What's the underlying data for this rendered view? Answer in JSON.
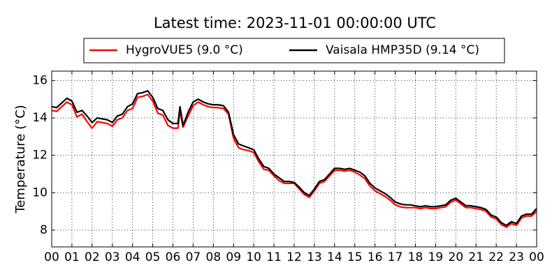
{
  "chart_data": {
    "type": "line",
    "title": "Latest time: 2023-11-01 00:00:00 UTC",
    "y_label": "Temperature (°C)",
    "x": [
      0,
      0.25,
      0.5,
      0.75,
      1,
      1.25,
      1.5,
      1.75,
      2,
      2.25,
      2.5,
      2.75,
      3,
      3.25,
      3.5,
      3.75,
      4,
      4.25,
      4.5,
      4.75,
      5,
      5.25,
      5.5,
      5.75,
      6,
      6.25,
      6.35,
      6.5,
      6.75,
      7,
      7.25,
      7.5,
      7.75,
      8,
      8.25,
      8.5,
      8.75,
      9,
      9.25,
      9.5,
      9.75,
      10,
      10.25,
      10.5,
      10.75,
      11,
      11.25,
      11.5,
      11.75,
      12,
      12.25,
      12.5,
      12.75,
      13,
      13.25,
      13.5,
      13.75,
      14,
      14.25,
      14.5,
      14.75,
      15,
      15.25,
      15.5,
      15.75,
      16,
      16.25,
      16.5,
      16.75,
      17,
      17.25,
      17.5,
      17.75,
      18,
      18.25,
      18.5,
      18.75,
      19,
      19.25,
      19.5,
      19.75,
      20,
      20.25,
      20.5,
      20.75,
      21,
      21.25,
      21.5,
      21.75,
      22,
      22.25,
      22.5,
      22.75,
      23,
      23.25,
      23.5,
      23.75,
      24
    ],
    "series": [
      {
        "name": "HygroVUE5 (9.0 °C)",
        "color": "#ff0000",
        "values": [
          14.4,
          14.35,
          14.6,
          14.85,
          14.7,
          14.05,
          14.2,
          13.8,
          13.45,
          13.8,
          13.75,
          13.7,
          13.55,
          13.9,
          14.0,
          14.4,
          14.5,
          15.1,
          15.15,
          15.25,
          14.9,
          14.25,
          14.15,
          13.6,
          13.45,
          13.45,
          14.4,
          13.5,
          14.1,
          14.65,
          14.85,
          14.7,
          14.6,
          14.55,
          14.55,
          14.5,
          14.2,
          12.9,
          12.4,
          12.3,
          12.25,
          12.15,
          11.65,
          11.25,
          11.2,
          10.9,
          10.65,
          10.5,
          10.5,
          10.5,
          10.2,
          9.9,
          9.75,
          10.1,
          10.5,
          10.6,
          10.9,
          11.2,
          11.2,
          11.15,
          11.2,
          11.1,
          10.95,
          10.75,
          10.35,
          10.1,
          9.95,
          9.8,
          9.6,
          9.35,
          9.25,
          9.2,
          9.2,
          9.2,
          9.15,
          9.2,
          9.15,
          9.15,
          9.2,
          9.25,
          9.5,
          9.6,
          9.4,
          9.2,
          9.2,
          9.15,
          9.1,
          9.0,
          8.7,
          8.6,
          8.3,
          8.15,
          8.35,
          8.25,
          8.65,
          8.75,
          8.75,
          9.0
        ]
      },
      {
        "name": "Vaisala HMP35D (9.14 °C)",
        "color": "#000000",
        "values": [
          14.6,
          14.55,
          14.8,
          15.05,
          14.9,
          14.3,
          14.4,
          14.1,
          13.75,
          14.0,
          13.95,
          13.9,
          13.75,
          14.1,
          14.2,
          14.6,
          14.75,
          15.3,
          15.35,
          15.45,
          15.1,
          14.5,
          14.4,
          13.9,
          13.7,
          13.7,
          14.6,
          13.6,
          14.3,
          14.85,
          15.0,
          14.85,
          14.75,
          14.7,
          14.7,
          14.65,
          14.3,
          13.1,
          12.6,
          12.5,
          12.4,
          12.3,
          11.8,
          11.4,
          11.3,
          11.0,
          10.8,
          10.6,
          10.6,
          10.55,
          10.3,
          10.0,
          9.85,
          10.2,
          10.6,
          10.7,
          11.0,
          11.3,
          11.3,
          11.25,
          11.3,
          11.2,
          11.1,
          10.9,
          10.5,
          10.25,
          10.1,
          9.95,
          9.75,
          9.5,
          9.4,
          9.35,
          9.35,
          9.3,
          9.25,
          9.3,
          9.25,
          9.25,
          9.3,
          9.35,
          9.6,
          9.7,
          9.5,
          9.3,
          9.3,
          9.25,
          9.2,
          9.1,
          8.8,
          8.7,
          8.4,
          8.25,
          8.45,
          8.35,
          8.75,
          8.85,
          8.85,
          9.15
        ]
      }
    ],
    "xlim": [
      0,
      24
    ],
    "xticks": [
      {
        "value": 0,
        "label": "00"
      },
      {
        "value": 1,
        "label": "01"
      },
      {
        "value": 2,
        "label": "02"
      },
      {
        "value": 3,
        "label": "03"
      },
      {
        "value": 4,
        "label": "04"
      },
      {
        "value": 5,
        "label": "05"
      },
      {
        "value": 6,
        "label": "06"
      },
      {
        "value": 7,
        "label": "07"
      },
      {
        "value": 8,
        "label": "08"
      },
      {
        "value": 9,
        "label": "09"
      },
      {
        "value": 10,
        "label": "10"
      },
      {
        "value": 11,
        "label": "11"
      },
      {
        "value": 12,
        "label": "12"
      },
      {
        "value": 13,
        "label": "13"
      },
      {
        "value": 14,
        "label": "14"
      },
      {
        "value": 15,
        "label": "15"
      },
      {
        "value": 16,
        "label": "16"
      },
      {
        "value": 17,
        "label": "17"
      },
      {
        "value": 18,
        "label": "18"
      },
      {
        "value": 19,
        "label": "19"
      },
      {
        "value": 20,
        "label": "20"
      },
      {
        "value": 21,
        "label": "21"
      },
      {
        "value": 22,
        "label": "22"
      },
      {
        "value": 23,
        "label": "23"
      },
      {
        "value": 24,
        "label": "00"
      }
    ],
    "ylim": [
      7.1,
      16.5
    ],
    "yticks": [
      8,
      10,
      12,
      14,
      16
    ],
    "grid": true
  }
}
